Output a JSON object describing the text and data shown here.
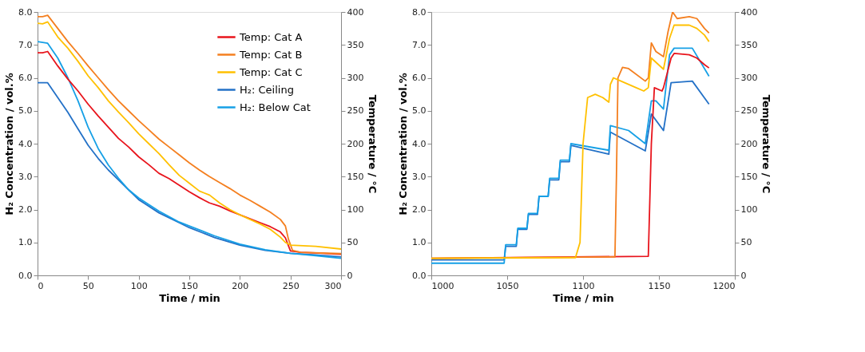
{
  "chart_data": [
    {
      "type": "line",
      "xlabel": "Time / min",
      "ylabel": "H₂ Concentration / vol.%",
      "y2label": "Temperature / °C",
      "legend": "top right",
      "xlim": [
        0,
        300
      ],
      "xticks": [
        0,
        50,
        100,
        150,
        200,
        250,
        300
      ],
      "ylim": [
        0,
        8
      ],
      "yticks": [
        {
          "value": 0,
          "label": "0.0"
        },
        {
          "value": 1,
          "label": "1.0"
        },
        {
          "value": 2,
          "label": "2.0"
        },
        {
          "value": 3,
          "label": "3.0"
        },
        {
          "value": 4,
          "label": "4.0"
        },
        {
          "value": 5,
          "label": "5.0"
        },
        {
          "value": 6,
          "label": "6.0"
        },
        {
          "value": 7,
          "label": "7.0"
        },
        {
          "value": 8,
          "label": "8.0"
        }
      ],
      "y2lim": [
        0,
        400
      ],
      "y2ticks": [
        0,
        50,
        100,
        150,
        200,
        250,
        300,
        350,
        400
      ],
      "series": [
        {
          "name": "Temp: Cat A",
          "color": "#e8141c",
          "axis": "y2",
          "x": [
            0,
            5,
            10,
            20,
            30,
            40,
            50,
            60,
            70,
            80,
            90,
            100,
            110,
            120,
            130,
            140,
            150,
            160,
            170,
            180,
            190,
            200,
            210,
            220,
            230,
            240,
            245,
            248,
            250,
            260,
            275,
            300
          ],
          "values": [
            338,
            338,
            340,
            318,
            298,
            280,
            260,
            242,
            225,
            208,
            195,
            180,
            168,
            155,
            147,
            137,
            127,
            118,
            110,
            105,
            98,
            92,
            86,
            80,
            74,
            66,
            57,
            45,
            37,
            35,
            34,
            32
          ]
        },
        {
          "name": "Temp: Cat B",
          "color": "#f47f1f",
          "axis": "y2",
          "x": [
            0,
            5,
            10,
            20,
            30,
            40,
            50,
            60,
            70,
            80,
            90,
            100,
            110,
            120,
            130,
            140,
            150,
            160,
            170,
            180,
            190,
            200,
            210,
            220,
            230,
            240,
            245,
            248,
            252,
            260,
            300
          ],
          "values": [
            393,
            393,
            395,
            375,
            355,
            337,
            318,
            300,
            282,
            265,
            250,
            235,
            221,
            207,
            195,
            183,
            171,
            160,
            150,
            141,
            132,
            122,
            114,
            105,
            96,
            85,
            75,
            55,
            38,
            35,
            33
          ]
        },
        {
          "name": "Temp: Cat C",
          "color": "#ffc000",
          "axis": "y2",
          "x": [
            0,
            5,
            10,
            20,
            30,
            40,
            50,
            60,
            70,
            80,
            90,
            100,
            110,
            120,
            130,
            140,
            150,
            160,
            170,
            180,
            190,
            200,
            210,
            220,
            230,
            240,
            245,
            250,
            275,
            300
          ],
          "values": [
            383,
            382,
            385,
            362,
            345,
            325,
            303,
            285,
            265,
            248,
            232,
            215,
            200,
            185,
            168,
            152,
            140,
            128,
            122,
            110,
            100,
            92,
            85,
            78,
            70,
            58,
            50,
            46,
            44,
            40
          ]
        },
        {
          "name": "H₂: Ceiling",
          "color": "#2371c7",
          "x": [
            0,
            10,
            20,
            30,
            40,
            50,
            60,
            70,
            80,
            90,
            100,
            120,
            140,
            150,
            175,
            200,
            225,
            250,
            275,
            300
          ],
          "values": [
            5.85,
            5.85,
            5.4,
            4.95,
            4.45,
            3.95,
            3.55,
            3.2,
            2.9,
            2.6,
            2.3,
            1.9,
            1.6,
            1.45,
            1.15,
            0.92,
            0.76,
            0.67,
            0.62,
            0.56
          ]
        },
        {
          "name": "H₂: Below Cat",
          "color": "#16a0e6",
          "x": [
            0,
            10,
            20,
            30,
            40,
            50,
            60,
            70,
            80,
            90,
            100,
            120,
            140,
            150,
            175,
            200,
            225,
            250,
            275,
            300
          ],
          "values": [
            7.1,
            7.05,
            6.6,
            6.0,
            5.3,
            4.5,
            3.85,
            3.35,
            2.95,
            2.6,
            2.35,
            1.95,
            1.62,
            1.5,
            1.2,
            0.95,
            0.78,
            0.67,
            0.6,
            0.52
          ]
        }
      ]
    },
    {
      "type": "line",
      "xlabel": "Time / min",
      "ylabel": "H₂ Concentration / vol.%",
      "y2label": "Temperature / °C",
      "xlim": [
        1000,
        1200
      ],
      "xticks": [
        1000,
        1050,
        1100,
        1150,
        1200
      ],
      "ylim": [
        0,
        8
      ],
      "yticks": [
        {
          "value": 0,
          "label": "0.0"
        },
        {
          "value": 1,
          "label": "1.0"
        },
        {
          "value": 2,
          "label": "2.0"
        },
        {
          "value": 3,
          "label": "3.0"
        },
        {
          "value": 4,
          "label": "4.0"
        },
        {
          "value": 5,
          "label": "5.0"
        },
        {
          "value": 6,
          "label": "6.0"
        },
        {
          "value": 7,
          "label": "7.0"
        },
        {
          "value": 8,
          "label": "8.0"
        }
      ],
      "y2lim": [
        0,
        400
      ],
      "y2ticks": [
        0,
        50,
        100,
        150,
        200,
        250,
        300,
        350,
        400
      ],
      "series": [
        {
          "color": "#e8141c",
          "axis": "y2",
          "x": [
            1000,
            1143,
            1145,
            1147,
            1152,
            1153,
            1158,
            1160,
            1170,
            1175,
            1180,
            1183
          ],
          "values": [
            26,
            29,
            200,
            285,
            280,
            285,
            330,
            337,
            335,
            330,
            320,
            315
          ]
        },
        {
          "color": "#f47f1f",
          "axis": "y2",
          "x": [
            1000,
            1121,
            1122,
            1123,
            1126,
            1130,
            1141,
            1143,
            1145,
            1148,
            1153,
            1156,
            1159,
            1162,
            1170,
            1175,
            1180,
            1183
          ],
          "values": [
            26,
            28,
            150,
            300,
            316,
            314,
            295,
            300,
            353,
            340,
            332,
            370,
            400,
            390,
            393,
            390,
            375,
            368
          ]
        },
        {
          "color": "#ffc000",
          "axis": "y2",
          "x": [
            1000,
            1095,
            1098,
            1100,
            1103,
            1108,
            1113,
            1117,
            1118,
            1120,
            1125,
            1135,
            1140,
            1143,
            1145,
            1153,
            1157,
            1160,
            1170,
            1175,
            1180,
            1183
          ],
          "values": [
            26,
            27,
            50,
            200,
            270,
            275,
            270,
            263,
            290,
            300,
            295,
            285,
            280,
            285,
            330,
            313,
            360,
            380,
            380,
            375,
            365,
            355
          ]
        },
        {
          "color": "#2371c7",
          "x": [
            1000,
            1048,
            1049,
            1056,
            1057,
            1063,
            1064,
            1070,
            1071,
            1077,
            1078,
            1084,
            1085,
            1091,
            1092,
            1117,
            1118,
            1141,
            1145,
            1153,
            1158,
            1172,
            1183
          ],
          "values": [
            0.47,
            0.47,
            0.88,
            0.88,
            1.4,
            1.4,
            1.85,
            1.85,
            2.4,
            2.4,
            2.9,
            2.9,
            3.45,
            3.45,
            3.95,
            3.68,
            4.35,
            3.78,
            4.9,
            4.4,
            5.85,
            5.9,
            5.2
          ]
        },
        {
          "color": "#16a0e6",
          "x": [
            1000,
            1048,
            1049,
            1056,
            1057,
            1063,
            1064,
            1070,
            1071,
            1077,
            1078,
            1084,
            1085,
            1091,
            1092,
            1117,
            1118,
            1130,
            1141,
            1145,
            1148,
            1153,
            1157,
            1160,
            1172,
            1183
          ],
          "values": [
            0.37,
            0.37,
            0.93,
            0.93,
            1.43,
            1.43,
            1.88,
            1.88,
            2.4,
            2.4,
            2.95,
            2.95,
            3.5,
            3.5,
            4.0,
            3.8,
            4.55,
            4.4,
            4.0,
            5.3,
            5.3,
            5.05,
            6.7,
            6.9,
            6.9,
            6.05
          ]
        }
      ]
    }
  ]
}
